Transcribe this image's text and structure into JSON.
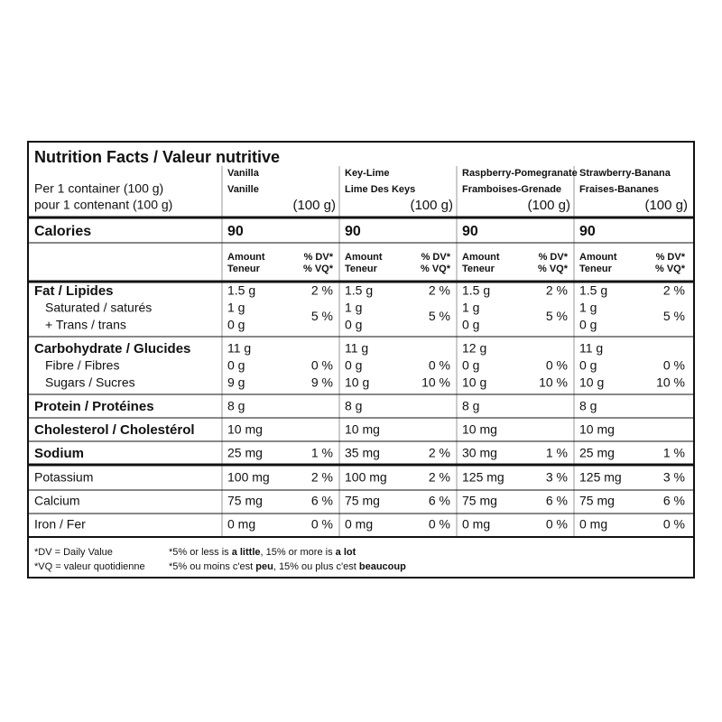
{
  "title": "Nutrition Facts / Valeur nutritive",
  "serving": [
    "Per 1 container (100 g)",
    "pour 1 contenant (100 g)"
  ],
  "flavors": [
    {
      "name": "Vanilla",
      "name_fr": "Vanille",
      "serving": "(100 g)",
      "calories": "90"
    },
    {
      "name": "Key-Lime",
      "name_fr": "Lime Des Keys",
      "serving": "(100 g)",
      "calories": "90"
    },
    {
      "name": "Raspberry-Pomegranate",
      "name_fr": "Framboises-Grenade",
      "serving": "(100 g)",
      "calories": "90"
    },
    {
      "name": "Strawberry-Banana",
      "name_fr": "Fraises-Bananes",
      "serving": "(100 g)",
      "calories": "90"
    }
  ],
  "calories_label": "Calories",
  "column_headers": {
    "amount": "Amount",
    "amount_fr": "Teneur",
    "dv": "% DV*",
    "dv_fr": "% VQ*"
  },
  "nutrients": [
    {
      "label": "Fat / Lipides",
      "amounts": [
        "1.5 g",
        "1.5 g",
        "1.5 g",
        "1.5 g"
      ],
      "dv": [
        "2 %",
        "2 %",
        "2 %",
        "2 %"
      ],
      "sub": [
        {
          "label": "Saturated / saturés",
          "amounts": [
            "1 g",
            "1 g",
            "1 g",
            "1 g"
          ]
        },
        {
          "label": "+ Trans / trans",
          "amounts": [
            "0 g",
            "0 g",
            "0 g",
            "0 g"
          ]
        }
      ],
      "sub_dv": [
        "5 %",
        "5 %",
        "5 %",
        "5 %"
      ]
    },
    {
      "label": "Carbohydrate / Glucides",
      "amounts": [
        "11 g",
        "11 g",
        "12 g",
        "11 g"
      ],
      "sub": [
        {
          "label": "Fibre / Fibres",
          "amounts": [
            "0 g",
            "0 g",
            "0 g",
            "0 g"
          ],
          "dv": [
            "0 %",
            "0 %",
            "0 %",
            "0 %"
          ]
        },
        {
          "label": "Sugars / Sucres",
          "amounts": [
            "9 g",
            "10 g",
            "10 g",
            "10 g"
          ],
          "dv": [
            "9 %",
            "10 %",
            "10 %",
            "10 %"
          ]
        }
      ]
    },
    {
      "label": "Protein / Protéines",
      "amounts": [
        "8 g",
        "8 g",
        "8 g",
        "8 g"
      ]
    },
    {
      "label": "Cholesterol / Cholestérol",
      "amounts": [
        "10 mg",
        "10 mg",
        "10 mg",
        "10 mg"
      ]
    },
    {
      "label": "Sodium",
      "amounts": [
        "25 mg",
        "35 mg",
        "30 mg",
        "25 mg"
      ],
      "dv": [
        "1 %",
        "2 %",
        "1 %",
        "1 %"
      ]
    }
  ],
  "minerals": [
    {
      "label": "Potassium",
      "amounts": [
        "100 mg",
        "100 mg",
        "125 mg",
        "125 mg"
      ],
      "dv": [
        "2 %",
        "2 %",
        "3 %",
        "3 %"
      ]
    },
    {
      "label": "Calcium",
      "amounts": [
        "75 mg",
        "75 mg",
        "75 mg",
        "75 mg"
      ],
      "dv": [
        "6 %",
        "6 %",
        "6 %",
        "6 %"
      ]
    },
    {
      "label": "Iron / Fer",
      "amounts": [
        "0 mg",
        "0 mg",
        "0 mg",
        "0 mg"
      ],
      "dv": [
        "0 %",
        "0 %",
        "0 %",
        "0 %"
      ]
    }
  ],
  "footnotes": {
    "left": [
      "*DV = Daily Value",
      "*VQ = valeur quotidienne"
    ],
    "right": [
      [
        "*5% or less is ",
        "a little",
        ", 15% or more is ",
        "a lot"
      ],
      [
        "*5% ou moins c'est ",
        "peu",
        ", 15% ou plus c'est ",
        "beaucoup"
      ]
    ]
  }
}
